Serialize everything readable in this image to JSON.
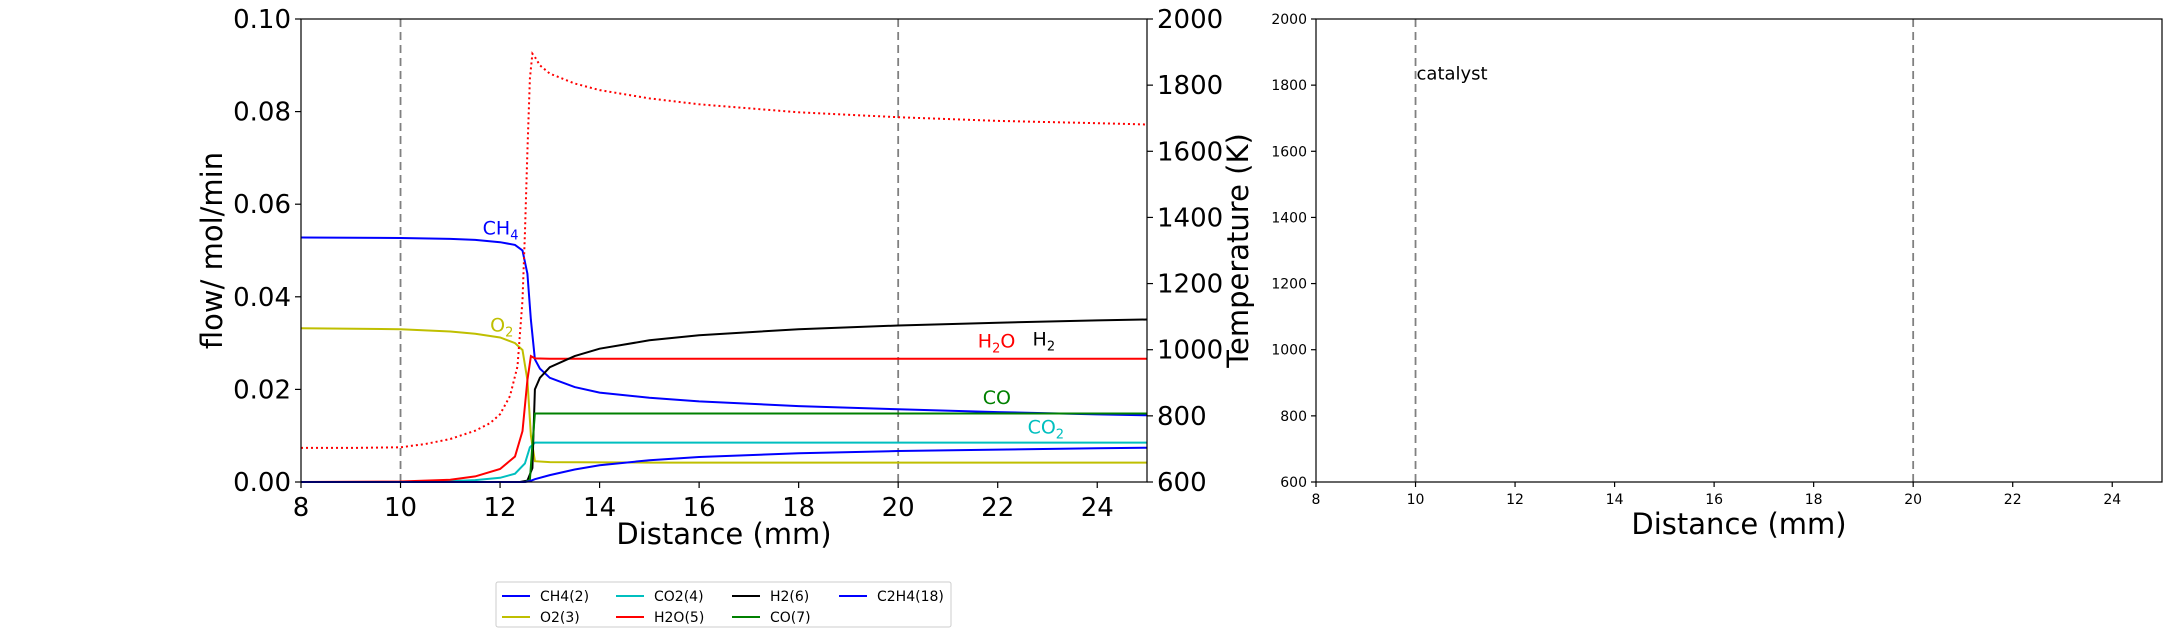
{
  "chart_data": [
    {
      "type": "line",
      "xlabel": "Distance (mm)",
      "ylabel": "flow/ mol/min",
      "y2label": "Temperature (K)",
      "xlim": [
        8,
        25
      ],
      "ylim": [
        0,
        0.1
      ],
      "y2lim": [
        600,
        2000
      ],
      "xticks": [
        "8",
        "10",
        "12",
        "14",
        "16",
        "18",
        "20",
        "22",
        "24"
      ],
      "yticks": [
        "0.00",
        "0.02",
        "0.04",
        "0.06",
        "0.08",
        "0.10"
      ],
      "y2ticks": [
        "600",
        "800",
        "1000",
        "1200",
        "1400",
        "1600",
        "1800",
        "2000"
      ],
      "grid": false,
      "vlines": [
        10,
        20
      ],
      "series": [
        {
          "name": "CH4(2)",
          "color": "#0000ff",
          "style": "solid",
          "x": [
            8,
            10,
            11,
            11.5,
            12,
            12.3,
            12.45,
            12.55,
            12.62,
            12.7,
            12.8,
            13.0,
            13.5,
            14,
            15,
            16,
            18,
            20,
            22,
            24,
            25
          ],
          "y": [
            0.0528,
            0.0527,
            0.0525,
            0.0523,
            0.0518,
            0.0512,
            0.05,
            0.045,
            0.035,
            0.0265,
            0.0245,
            0.0225,
            0.0205,
            0.0193,
            0.0182,
            0.0174,
            0.0164,
            0.0157,
            0.0151,
            0.0146,
            0.0144
          ]
        },
        {
          "name": "O2(3)",
          "color": "#bfbf00",
          "style": "solid",
          "x": [
            8,
            10,
            11,
            11.5,
            12,
            12.3,
            12.45,
            12.55,
            12.62,
            12.7,
            13,
            15,
            20,
            25
          ],
          "y": [
            0.0332,
            0.033,
            0.0325,
            0.032,
            0.0312,
            0.03,
            0.0285,
            0.022,
            0.01,
            0.0045,
            0.0043,
            0.0042,
            0.0042,
            0.0042
          ]
        },
        {
          "name": "CO2(4)",
          "color": "#00bfbf",
          "style": "solid",
          "x": [
            8,
            10,
            11,
            11.5,
            12,
            12.3,
            12.5,
            12.6,
            12.7,
            13,
            15,
            20,
            25
          ],
          "y": [
            0,
            0,
            0.0002,
            0.0004,
            0.0009,
            0.0018,
            0.004,
            0.0075,
            0.0085,
            0.0085,
            0.0085,
            0.0085,
            0.0085
          ]
        },
        {
          "name": "H2O(5)",
          "color": "#ff0000",
          "style": "solid",
          "x": [
            8,
            10,
            11,
            11.5,
            12,
            12.3,
            12.45,
            12.55,
            12.62,
            12.7,
            13,
            15,
            20,
            25
          ],
          "y": [
            0,
            0.0001,
            0.0005,
            0.0012,
            0.0028,
            0.0055,
            0.011,
            0.022,
            0.0272,
            0.0267,
            0.0266,
            0.0266,
            0.0266,
            0.0266
          ]
        },
        {
          "name": "H2(6)",
          "color": "#000000",
          "style": "solid",
          "x": [
            8,
            12.4,
            12.55,
            12.65,
            12.7,
            12.8,
            13,
            13.5,
            14,
            15,
            16,
            18,
            20,
            22,
            24,
            25
          ],
          "y": [
            0,
            0,
            0.0003,
            0.003,
            0.02,
            0.0225,
            0.0248,
            0.0272,
            0.0288,
            0.0306,
            0.0317,
            0.033,
            0.0338,
            0.0344,
            0.0349,
            0.0351
          ]
        },
        {
          "name": "CO(7)",
          "color": "#008000",
          "style": "solid",
          "x": [
            8,
            12.5,
            12.6,
            12.65,
            12.7,
            13,
            15,
            20,
            25
          ],
          "y": [
            0,
            0,
            0.0005,
            0.008,
            0.0148,
            0.0148,
            0.0148,
            0.0148,
            0.0148
          ]
        },
        {
          "name": "C2H4(18)",
          "color": "#0000ff",
          "style": "solid",
          "x": [
            8,
            12.5,
            12.6,
            12.7,
            13,
            13.5,
            14,
            15,
            16,
            18,
            20,
            22,
            24,
            25
          ],
          "y": [
            0,
            0,
            0.0002,
            0.0006,
            0.0015,
            0.0027,
            0.0036,
            0.0047,
            0.0054,
            0.0062,
            0.0067,
            0.007,
            0.0073,
            0.0074
          ]
        }
      ],
      "temperature": {
        "color": "#ff0000",
        "style": "dotted",
        "axis": "right",
        "x": [
          8,
          9,
          10,
          10.5,
          11,
          11.5,
          11.8,
          12,
          12.2,
          12.35,
          12.45,
          12.5,
          12.55,
          12.6,
          12.65,
          12.7,
          12.8,
          13,
          13.5,
          14,
          15,
          16,
          18,
          20,
          22,
          24,
          25
        ],
        "y": [
          703,
          703,
          705,
          715,
          730,
          755,
          778,
          805,
          860,
          950,
          1150,
          1350,
          1600,
          1820,
          1895,
          1885,
          1860,
          1835,
          1805,
          1785,
          1760,
          1742,
          1718,
          1703,
          1692,
          1685,
          1681
        ]
      },
      "annotations": [
        {
          "text": "CH",
          "sub": "4",
          "color": "#0000ff",
          "x": 11.65,
          "y": 0.0535
        },
        {
          "text": "O",
          "sub": "2",
          "color": "#bfbf00",
          "x": 11.8,
          "y": 0.0325
        },
        {
          "text": "H",
          "sub": "2",
          "color": "#000000",
          "x": 22.7,
          "y": 0.0295
        },
        {
          "text": "H",
          "sub": "2",
          "after": "O",
          "color": "#ff0000",
          "x": 21.6,
          "y": 0.029
        },
        {
          "text": "CO",
          "sub": "",
          "color": "#008000",
          "x": 21.7,
          "y": 0.0168
        },
        {
          "text": "CO",
          "sub": "2",
          "color": "#00bfbf",
          "x": 22.6,
          "y": 0.0105
        }
      ],
      "legend": {
        "placement": "below-center",
        "entries": [
          "CH4(2)",
          "O2(3)",
          "CO2(4)",
          "H2O(5)",
          "H2(6)",
          "CO(7)",
          "C2H4(18)"
        ]
      }
    },
    {
      "type": "line",
      "xlabel": "Distance (mm)",
      "xlim": [
        8,
        25
      ],
      "ylim": [
        600,
        2000
      ],
      "xticks": [
        "8",
        "10",
        "12",
        "14",
        "16",
        "18",
        "20",
        "22",
        "24"
      ],
      "yticks": [
        "600",
        "800",
        "1000",
        "1200",
        "1400",
        "1600",
        "1800",
        "2000"
      ],
      "grid": false,
      "vlines": [
        10,
        20
      ],
      "series": [],
      "annotations": [
        {
          "text": "catalyst",
          "x": 10.0,
          "y": 1835
        }
      ]
    }
  ]
}
